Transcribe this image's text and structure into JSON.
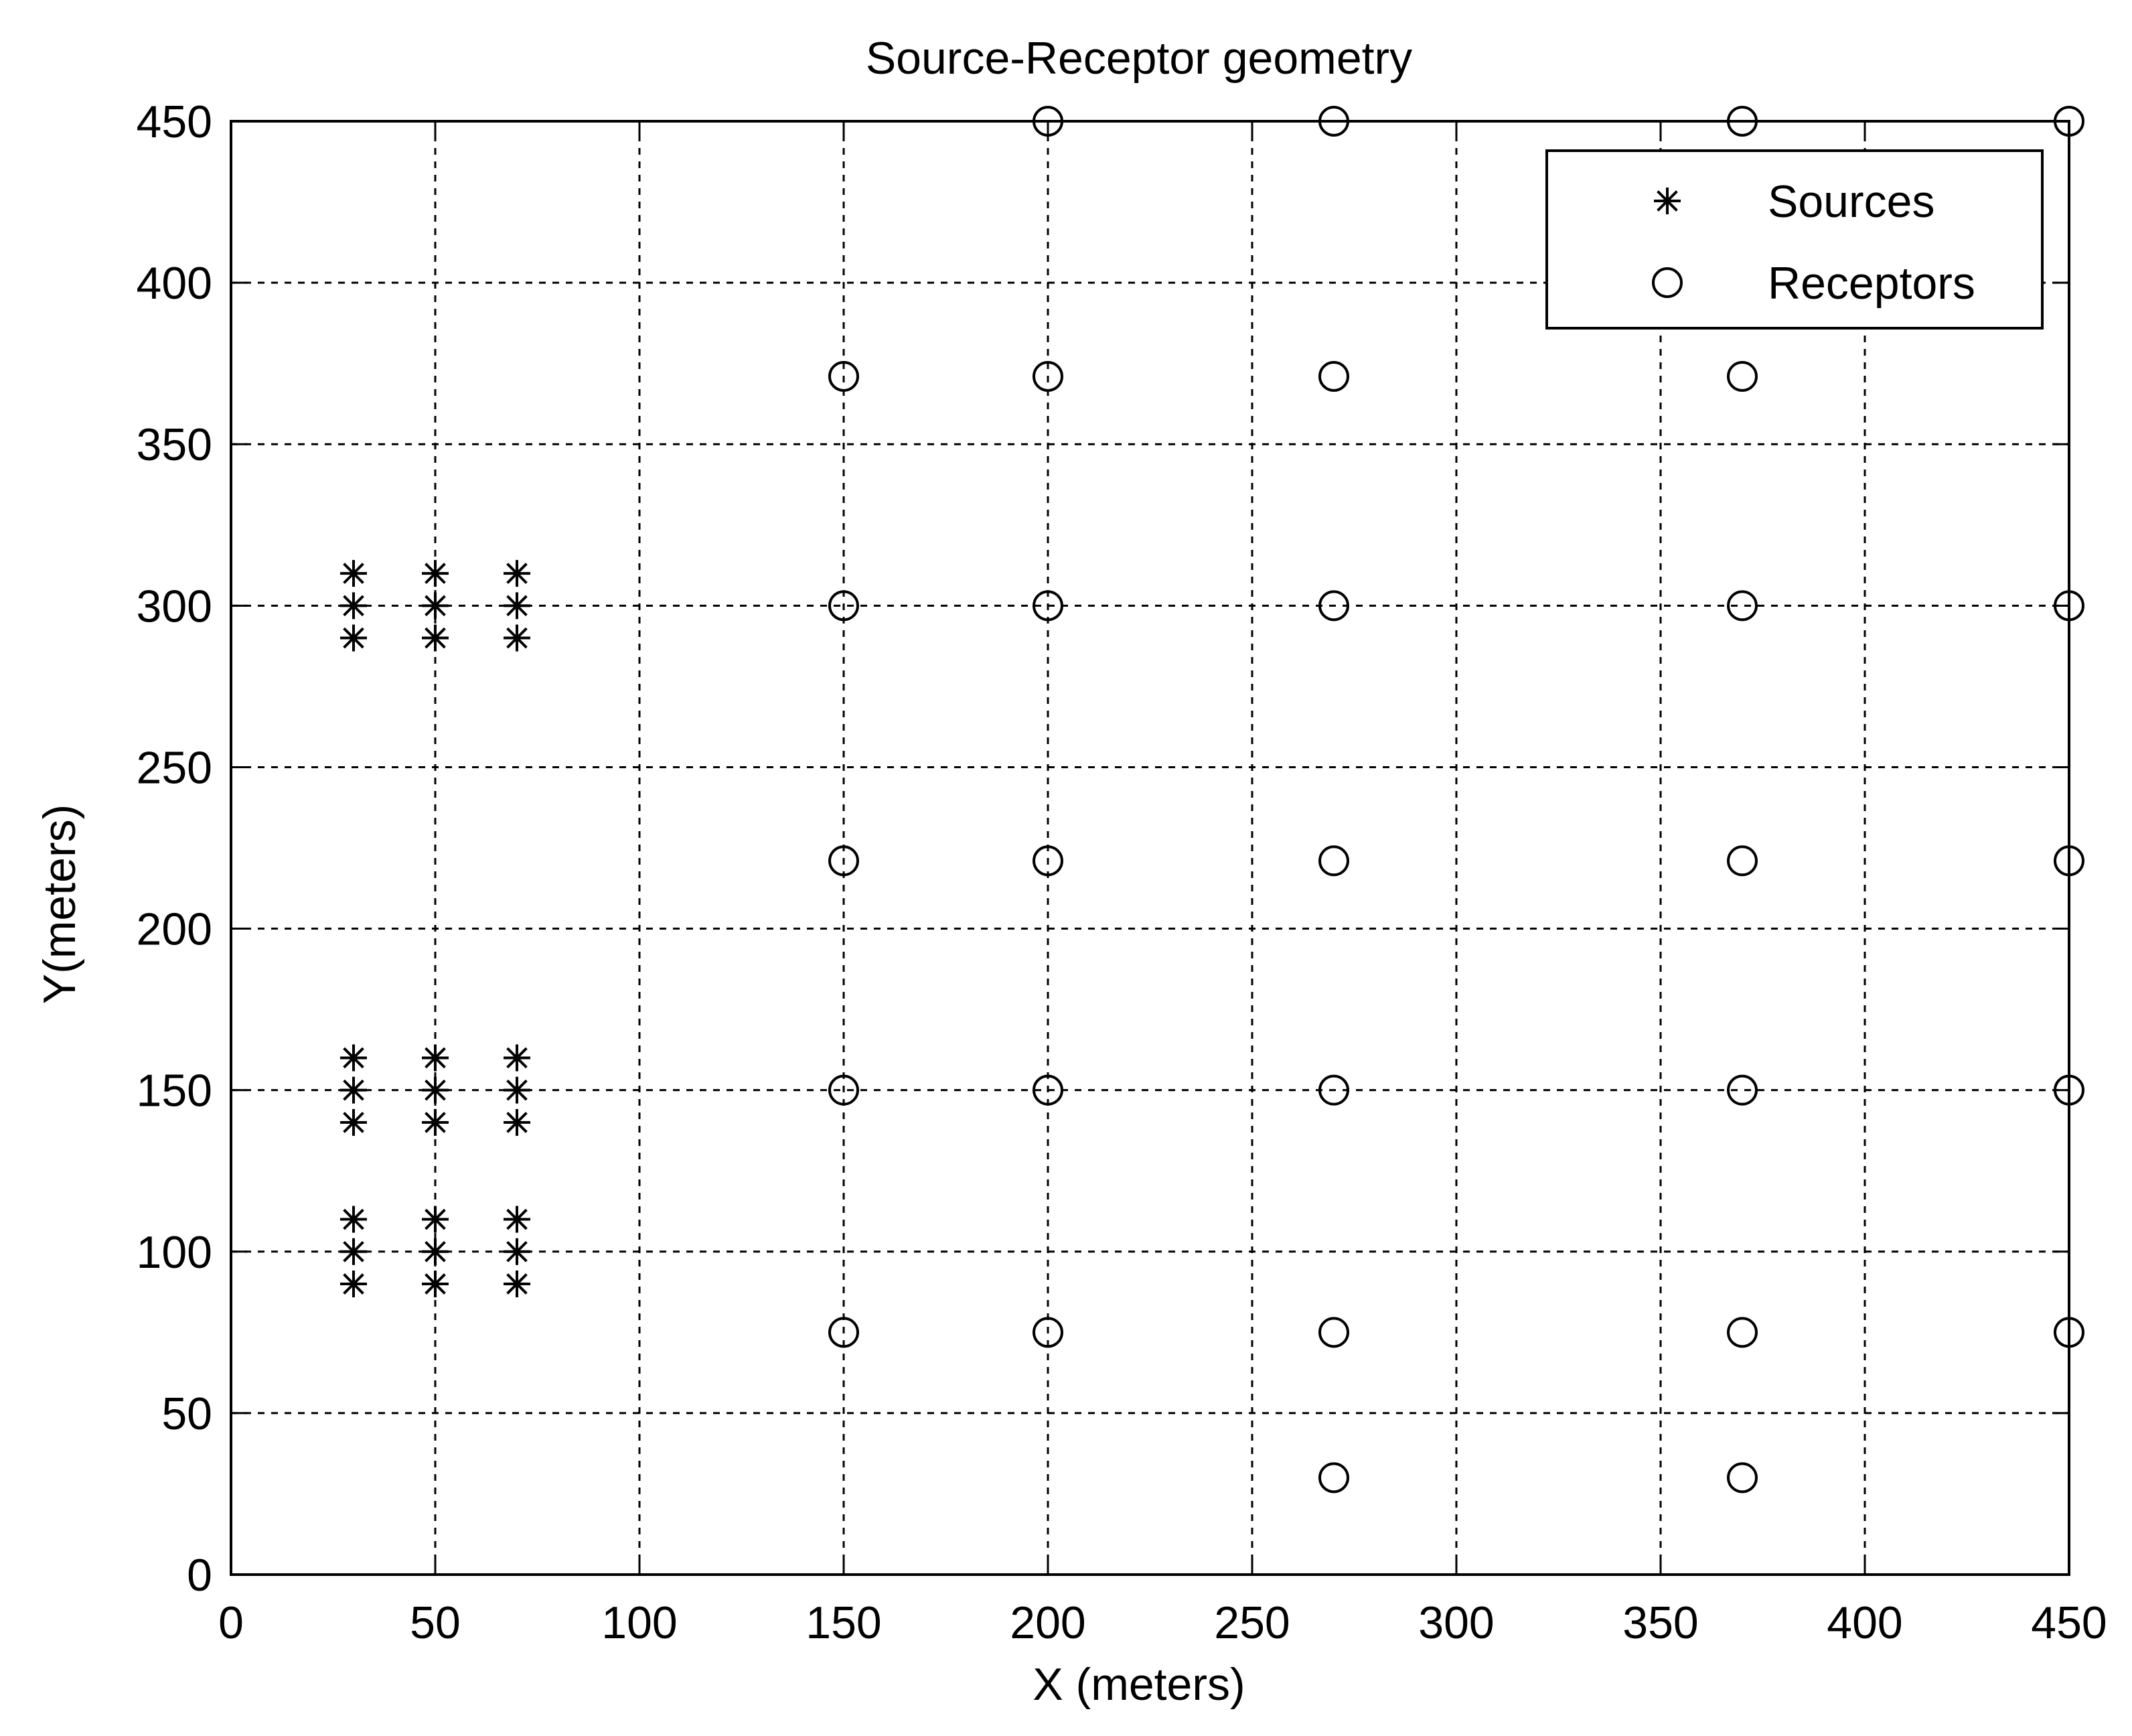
{
  "chart_data": {
    "type": "scatter",
    "title": "Source-Receptor geometry",
    "xlabel": "X (meters)",
    "ylabel": "Y(meters)",
    "xlim": [
      0,
      450
    ],
    "ylim": [
      0,
      450
    ],
    "xticks": [
      0,
      50,
      100,
      150,
      200,
      250,
      300,
      350,
      400,
      450
    ],
    "yticks": [
      0,
      50,
      100,
      150,
      200,
      250,
      300,
      350,
      400,
      450
    ],
    "grid": true,
    "legend_position": "top-right",
    "series": [
      {
        "name": "Sources",
        "marker": "asterisk",
        "color": "#000000",
        "points": [
          [
            30,
            310
          ],
          [
            30,
            300
          ],
          [
            30,
            290
          ],
          [
            50,
            310
          ],
          [
            50,
            300
          ],
          [
            50,
            290
          ],
          [
            70,
            310
          ],
          [
            70,
            300
          ],
          [
            70,
            290
          ],
          [
            30,
            160
          ],
          [
            30,
            150
          ],
          [
            30,
            140
          ],
          [
            50,
            160
          ],
          [
            50,
            150
          ],
          [
            50,
            140
          ],
          [
            70,
            160
          ],
          [
            70,
            150
          ],
          [
            70,
            140
          ],
          [
            30,
            110
          ],
          [
            30,
            100
          ],
          [
            30,
            90
          ],
          [
            50,
            110
          ],
          [
            50,
            100
          ],
          [
            50,
            90
          ],
          [
            70,
            110
          ],
          [
            70,
            100
          ],
          [
            70,
            90
          ]
        ]
      },
      {
        "name": "Receptors",
        "marker": "circle",
        "color": "#000000",
        "points": [
          [
            200,
            450
          ],
          [
            270,
            450
          ],
          [
            370,
            450
          ],
          [
            450,
            450
          ],
          [
            150,
            371
          ],
          [
            200,
            371
          ],
          [
            270,
            371
          ],
          [
            370,
            371
          ],
          [
            150,
            300
          ],
          [
            200,
            300
          ],
          [
            270,
            300
          ],
          [
            370,
            300
          ],
          [
            450,
            300
          ],
          [
            150,
            221
          ],
          [
            200,
            221
          ],
          [
            270,
            221
          ],
          [
            370,
            221
          ],
          [
            450,
            221
          ],
          [
            150,
            150
          ],
          [
            200,
            150
          ],
          [
            270,
            150
          ],
          [
            370,
            150
          ],
          [
            450,
            150
          ],
          [
            150,
            75
          ],
          [
            200,
            75
          ],
          [
            270,
            75
          ],
          [
            370,
            75
          ],
          [
            450,
            75
          ],
          [
            270,
            30
          ],
          [
            370,
            30
          ]
        ]
      }
    ]
  }
}
